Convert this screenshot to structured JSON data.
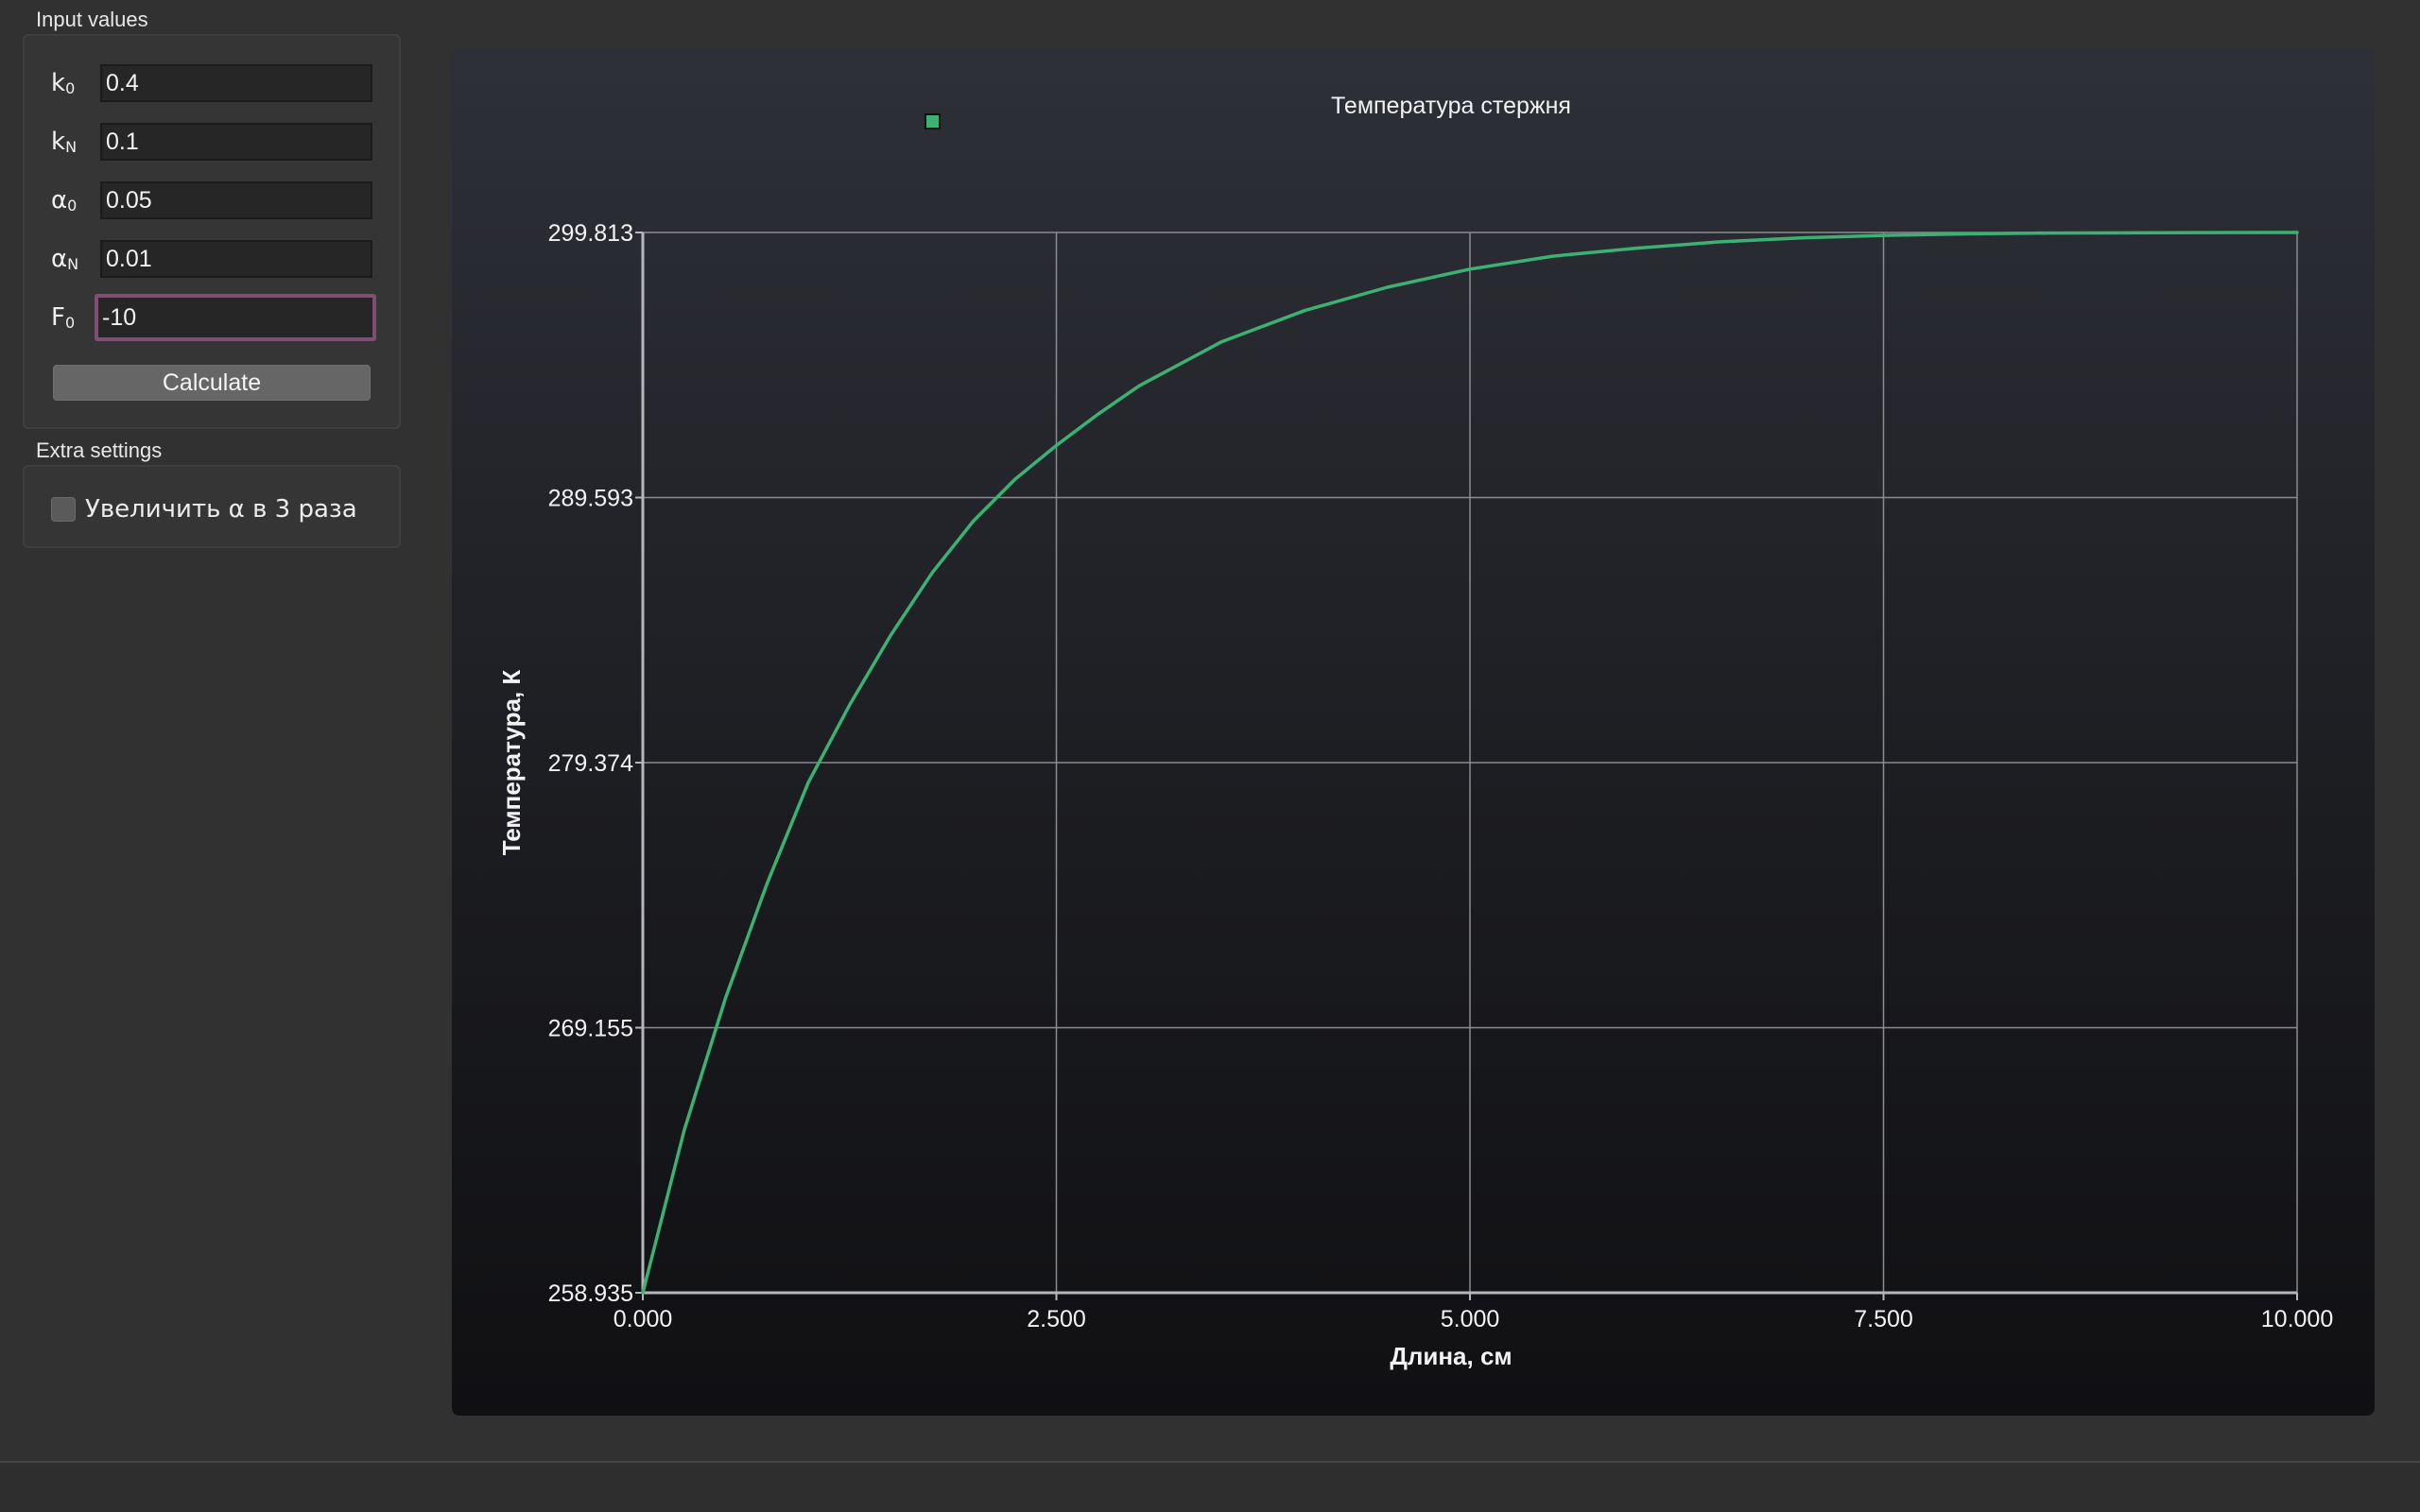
{
  "input_group": {
    "title": "Input values",
    "fields": [
      {
        "base": "k",
        "sub": "0",
        "value": "0.4"
      },
      {
        "base": "k",
        "sub": "N",
        "value": "0.1"
      },
      {
        "base": "α",
        "sub": "0",
        "value": "0.05"
      },
      {
        "base": "α",
        "sub": "N",
        "value": "0.01"
      },
      {
        "base": "F",
        "sub": "0",
        "value": "-10"
      }
    ],
    "calculate_label": "Calculate"
  },
  "extra_group": {
    "title": "Extra settings",
    "checkbox_label": "Увеличить α в 3 раза",
    "checkbox_checked": false
  },
  "chart_data": {
    "type": "line",
    "title": "Температура стержня",
    "xlabel": "Длина, см",
    "ylabel": "Температура, К",
    "xlim": [
      0,
      10
    ],
    "ylim": [
      258.935,
      299.813
    ],
    "x_ticks": [
      "0.000",
      "2.500",
      "5.000",
      "7.500",
      "10.000"
    ],
    "y_ticks": [
      "258.935",
      "269.155",
      "279.374",
      "289.593",
      "299.813"
    ],
    "grid": true,
    "legend": "top-center",
    "line_color": "#3bb273",
    "series": [
      {
        "x": [
          0,
          0.25,
          0.5,
          0.75,
          1.0,
          1.25,
          1.5,
          1.75,
          2.0,
          2.25,
          2.5,
          2.75,
          3.0,
          3.5,
          4.0,
          4.5,
          5.0,
          5.5,
          6.0,
          6.5,
          7.0,
          7.5,
          8.0,
          8.5,
          9.0,
          9.5,
          10.0
        ],
        "values": [
          258.935,
          265.2,
          270.3,
          274.7,
          278.6,
          281.6,
          284.3,
          286.7,
          288.7,
          290.3,
          291.6,
          292.8,
          293.9,
          295.6,
          296.8,
          297.7,
          298.4,
          298.9,
          299.2,
          299.45,
          299.6,
          299.7,
          299.76,
          299.79,
          299.8,
          299.81,
          299.813
        ]
      }
    ]
  }
}
